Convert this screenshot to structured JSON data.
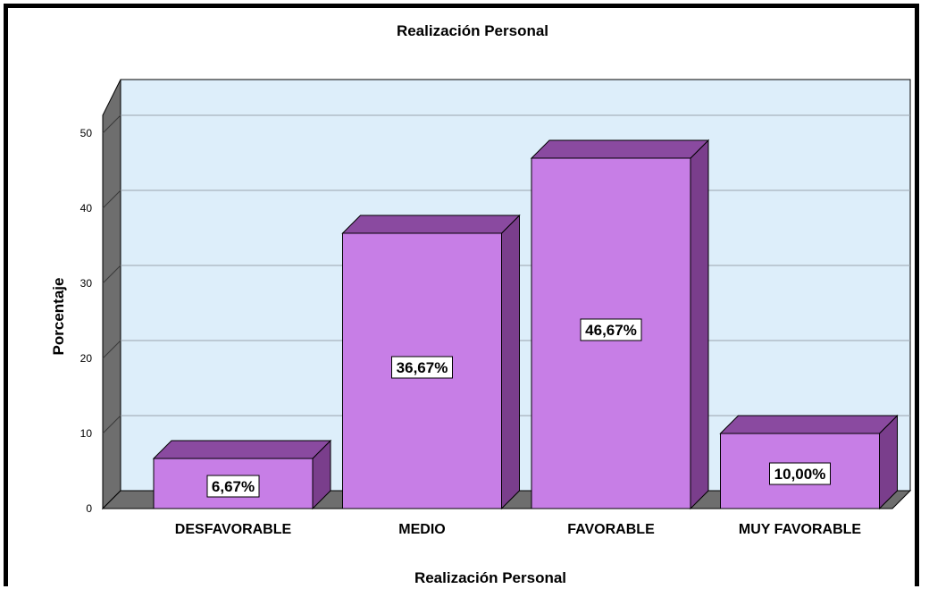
{
  "chart_data": {
    "type": "bar",
    "title": "Realización Personal",
    "xlabel": "Realización Personal",
    "ylabel": "Porcentaje",
    "categories": [
      "DESFAVORABLE",
      "MEDIO",
      "FAVORABLE",
      "MUY FAVORABLE"
    ],
    "values": [
      6.67,
      36.67,
      46.67,
      10.0
    ],
    "data_labels": [
      "6,67%",
      "36,67%",
      "46,67%",
      "10,00%"
    ],
    "ylim": [
      0,
      50
    ],
    "yticks": [
      "0",
      "10",
      "20",
      "30",
      "40",
      "50"
    ],
    "grid": true,
    "style": "3d",
    "colors": {
      "bar_front": "#c77ee6",
      "bar_top": "#8a4aa0",
      "bar_side": "#7a3e8c",
      "plot_back": "#ddeefa",
      "floor": "#6e6e6e",
      "wall": "#6e6e6e"
    }
  }
}
